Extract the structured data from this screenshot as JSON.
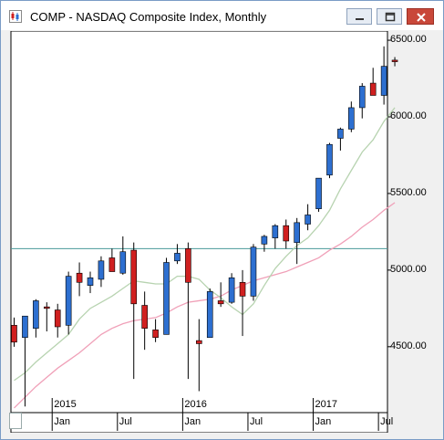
{
  "window": {
    "title": "COMP - NASDAQ Composite Index, Monthly",
    "buttons": {
      "minimize": "minimize-icon",
      "maximize": "maximize-icon",
      "close": "close-icon"
    }
  },
  "chart_data": {
    "type": "candlestick",
    "title": "COMP - NASDAQ Composite Index, Monthly",
    "ylim": [
      4070,
      6560
    ],
    "y_ticks": [
      {
        "value": 6500,
        "label": "6500.00"
      },
      {
        "value": 6000,
        "label": "6000.00"
      },
      {
        "value": 5500,
        "label": "5500.00"
      },
      {
        "value": 5000,
        "label": "5000.00"
      },
      {
        "value": 4500,
        "label": "4500.00"
      }
    ],
    "year_labels": [
      {
        "index": 4,
        "label": "2015"
      },
      {
        "index": 16,
        "label": "2016"
      },
      {
        "index": 28,
        "label": "2017"
      }
    ],
    "month_labels": [
      {
        "index": 4,
        "label": "Jan"
      },
      {
        "index": 10,
        "label": "Jul"
      },
      {
        "index": 16,
        "label": "Jan"
      },
      {
        "index": 22,
        "label": "Jul"
      },
      {
        "index": 28,
        "label": "Jan"
      },
      {
        "index": 34,
        "label": "Jul"
      }
    ],
    "reference_line": 5140,
    "reference_line_color": "#4a9a9a",
    "up_color": "#2d6fd0",
    "down_color": "#d02020",
    "ma_short_color": "#b7d3b0",
    "ma_long_color": "#f0a0b8",
    "candles": [
      {
        "x": 0,
        "o": 4640,
        "h": 4690,
        "l": 4500,
        "c": 4530
      },
      {
        "x": 1,
        "o": 4560,
        "h": 4700,
        "l": 4110,
        "c": 4700
      },
      {
        "x": 2,
        "o": 4620,
        "h": 4810,
        "l": 4560,
        "c": 4800
      },
      {
        "x": 3,
        "o": 4760,
        "h": 4790,
        "l": 4600,
        "c": 4750
      },
      {
        "x": 4,
        "o": 4740,
        "h": 4780,
        "l": 4560,
        "c": 4630
      },
      {
        "x": 5,
        "o": 4640,
        "h": 4990,
        "l": 4580,
        "c": 4960
      },
      {
        "x": 6,
        "o": 4980,
        "h": 5050,
        "l": 4830,
        "c": 4920
      },
      {
        "x": 7,
        "o": 4900,
        "h": 4990,
        "l": 4850,
        "c": 4950
      },
      {
        "x": 8,
        "o": 4940,
        "h": 5090,
        "l": 4890,
        "c": 5060
      },
      {
        "x": 9,
        "o": 5080,
        "h": 5140,
        "l": 4990,
        "c": 4990
      },
      {
        "x": 10,
        "o": 4980,
        "h": 5220,
        "l": 4970,
        "c": 5120
      },
      {
        "x": 11,
        "o": 5130,
        "h": 5180,
        "l": 4290,
        "c": 4780
      },
      {
        "x": 12,
        "o": 4770,
        "h": 4860,
        "l": 4480,
        "c": 4620
      },
      {
        "x": 13,
        "o": 4610,
        "h": 4680,
        "l": 4530,
        "c": 4560
      },
      {
        "x": 14,
        "o": 4580,
        "h": 5080,
        "l": 4580,
        "c": 5050
      },
      {
        "x": 15,
        "o": 5060,
        "h": 5170,
        "l": 5040,
        "c": 5110
      },
      {
        "x": 16,
        "o": 5140,
        "h": 5180,
        "l": 4290,
        "c": 4920
      },
      {
        "x": 17,
        "o": 4540,
        "h": 4680,
        "l": 4210,
        "c": 4520
      },
      {
        "x": 18,
        "o": 4560,
        "h": 4880,
        "l": 4560,
        "c": 4860
      },
      {
        "x": 19,
        "o": 4800,
        "h": 4920,
        "l": 4760,
        "c": 4780
      },
      {
        "x": 20,
        "o": 4790,
        "h": 4980,
        "l": 4780,
        "c": 4950
      },
      {
        "x": 21,
        "o": 4920,
        "h": 5000,
        "l": 4570,
        "c": 4830
      },
      {
        "x": 22,
        "o": 4830,
        "h": 5170,
        "l": 4800,
        "c": 5150
      },
      {
        "x": 23,
        "o": 5170,
        "h": 5230,
        "l": 5120,
        "c": 5220
      },
      {
        "x": 24,
        "o": 5210,
        "h": 5300,
        "l": 5140,
        "c": 5290
      },
      {
        "x": 25,
        "o": 5290,
        "h": 5330,
        "l": 5140,
        "c": 5190
      },
      {
        "x": 26,
        "o": 5180,
        "h": 5340,
        "l": 5040,
        "c": 5310
      },
      {
        "x": 27,
        "o": 5300,
        "h": 5430,
        "l": 5260,
        "c": 5360
      },
      {
        "x": 28,
        "o": 5400,
        "h": 5600,
        "l": 5380,
        "c": 5600
      },
      {
        "x": 29,
        "o": 5620,
        "h": 5830,
        "l": 5600,
        "c": 5820
      },
      {
        "x": 30,
        "o": 5860,
        "h": 5930,
        "l": 5780,
        "c": 5920
      },
      {
        "x": 31,
        "o": 5920,
        "h": 6100,
        "l": 5900,
        "c": 6060
      },
      {
        "x": 32,
        "o": 6060,
        "h": 6220,
        "l": 5990,
        "c": 6200
      },
      {
        "x": 33,
        "o": 6220,
        "h": 6320,
        "l": 6150,
        "c": 6140
      },
      {
        "x": 34,
        "o": 6140,
        "h": 6460,
        "l": 6080,
        "c": 6330
      },
      {
        "x": 35,
        "o": 6370,
        "h": 6390,
        "l": 6330,
        "c": 6360
      }
    ],
    "ma_short": [
      4280,
      4330,
      4400,
      4460,
      4520,
      4580,
      4680,
      4750,
      4790,
      4830,
      4880,
      4930,
      4920,
      4910,
      4910,
      4960,
      4960,
      4940,
      4870,
      4820,
      4760,
      4710,
      4780,
      4900,
      5010,
      5090,
      5160,
      5210,
      5290,
      5390,
      5530,
      5650,
      5770,
      5850,
      5970,
      6060
    ],
    "ma_long": [
      4100,
      4170,
      4240,
      4300,
      4360,
      4410,
      4460,
      4520,
      4580,
      4620,
      4650,
      4670,
      4680,
      4690,
      4720,
      4760,
      4790,
      4800,
      4810,
      4830,
      4870,
      4900,
      4930,
      4950,
      4970,
      4990,
      5020,
      5050,
      5080,
      5130,
      5170,
      5220,
      5280,
      5330,
      5390,
      5440
    ]
  }
}
